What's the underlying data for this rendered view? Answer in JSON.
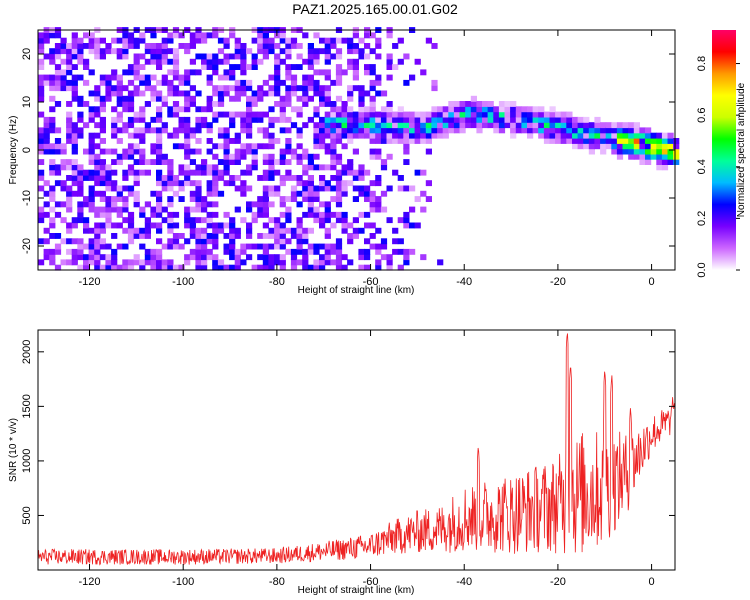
{
  "title": "PAZ1.2025.165.00.01.G02",
  "chart_data": [
    {
      "type": "heatmap",
      "xlabel": "Height of straight line (km)",
      "ylabel": "Frequency (Hz)",
      "xlim": [
        -131,
        5
      ],
      "ylim": [
        -25,
        25
      ],
      "xticks": [
        -120,
        -100,
        -80,
        -60,
        -40,
        -20,
        0
      ],
      "yticks": [
        -20,
        -10,
        0,
        10,
        20
      ],
      "colorbar": {
        "label": "Normalized spectral amplitude",
        "range": [
          0,
          0.93
        ],
        "ticks": [
          "0.0",
          "0.2",
          "0.4",
          "0.6",
          "0.8"
        ],
        "tick_values": [
          0,
          0.2,
          0.4,
          0.6,
          0.8
        ],
        "colors": [
          "#ffffff",
          "#cc66ff",
          "#7700ff",
          "#0000ff",
          "#00bbff",
          "#00ff99",
          "#00ff00",
          "#ccff00",
          "#ffff00",
          "#ff9900",
          "#ff0000",
          "#ff0066"
        ]
      },
      "features": {
        "noise_region_x": [
          -131,
          -60
        ],
        "noise_amplitude": 0.15,
        "signal_track": [
          [
            -70,
            5
          ],
          [
            -60,
            5
          ],
          [
            -50,
            4
          ],
          [
            -40,
            7
          ],
          [
            -30,
            6
          ],
          [
            -20,
            4
          ],
          [
            -10,
            2
          ],
          [
            -4,
            1
          ],
          [
            0,
            0
          ],
          [
            5,
            -1
          ]
        ],
        "signal_peak_amplitude": 0.85
      }
    },
    {
      "type": "line",
      "xlabel": "Height of straight line (km)",
      "ylabel": "SNR (10 * v/v)",
      "xlim": [
        -131,
        5
      ],
      "ylim": [
        0,
        2200
      ],
      "xticks": [
        -120,
        -100,
        -80,
        -60,
        -40,
        -20,
        0
      ],
      "yticks": [
        500,
        1000,
        1500,
        2000
      ],
      "line_color": "#ee2222",
      "series_envelope": {
        "x": [
          -131,
          -120,
          -100,
          -80,
          -70,
          -60,
          -55,
          -50,
          -45,
          -40,
          -35,
          -30,
          -25,
          -20,
          -18,
          -15,
          -10,
          -5,
          0,
          5
        ],
        "mean": [
          120,
          120,
          120,
          130,
          170,
          220,
          300,
          350,
          380,
          480,
          500,
          520,
          560,
          600,
          650,
          700,
          750,
          900,
          1250,
          1400
        ],
        "spread": [
          80,
          80,
          80,
          80,
          100,
          130,
          180,
          220,
          250,
          350,
          380,
          420,
          450,
          500,
          600,
          650,
          600,
          400,
          200,
          150
        ]
      },
      "spikes": [
        [
          -37,
          1150
        ],
        [
          -18,
          2200
        ],
        [
          -17.3,
          1900
        ],
        [
          -10,
          1850
        ],
        [
          -8.5,
          1800
        ],
        [
          -4.5,
          1500
        ],
        [
          4.5,
          1600
        ]
      ]
    }
  ]
}
